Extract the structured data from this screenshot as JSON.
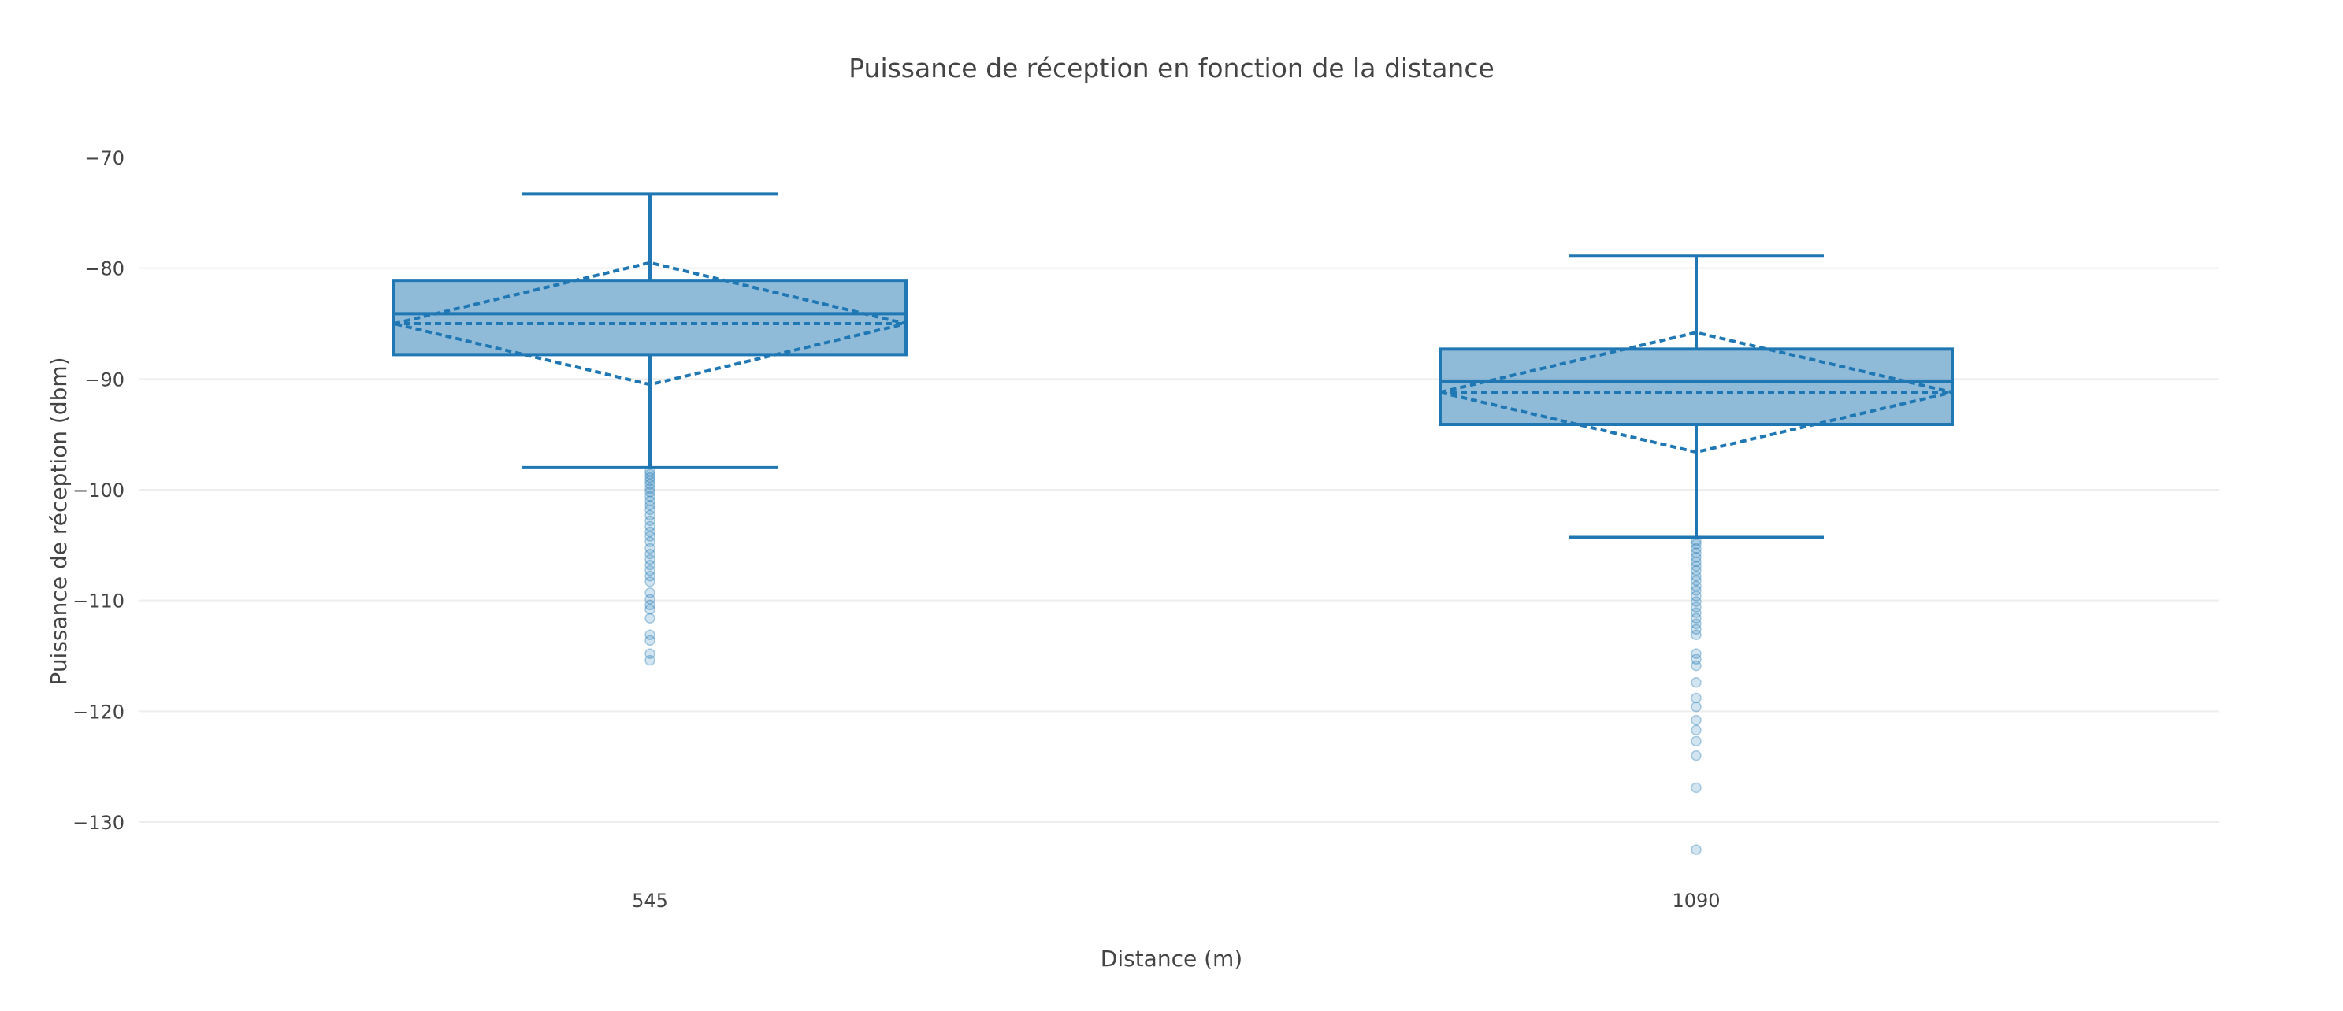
{
  "chart_data": {
    "type": "box",
    "title": "Puissance de réception  en fonction de la distance",
    "xlabel": "Distance (m)",
    "ylabel": "Puissance de réception (dbm)",
    "categories": [
      "545",
      "1090"
    ],
    "ylim": [
      -135,
      -65
    ],
    "yticks": [
      -70,
      -80,
      -90,
      -100,
      -110,
      -120,
      -130
    ],
    "ytick_labels": [
      "−70",
      "−80",
      "−90",
      "−100",
      "−110",
      "−120",
      "−130"
    ],
    "grid": true,
    "color": "#1f77b4",
    "boxes": [
      {
        "category": "545",
        "upper_whisker": -73.3,
        "q3": -81.1,
        "median": -84.1,
        "q1": -87.8,
        "lower_whisker": -98.0,
        "mean": -85.0,
        "sd": 5.5,
        "outliers": [
          -98.3,
          -98.6,
          -98.9,
          -99.2,
          -99.5,
          -99.9,
          -100.2,
          -100.6,
          -101.0,
          -101.4,
          -101.8,
          -102.3,
          -102.8,
          -103.3,
          -103.8,
          -104.2,
          -104.7,
          -105.3,
          -105.8,
          -106.3,
          -106.8,
          -107.3,
          -107.8,
          -108.3,
          -109.3,
          -109.9,
          -110.4,
          -110.8,
          -111.6,
          -113.1,
          -113.6,
          -114.8,
          -115.4
        ]
      },
      {
        "category": "1090",
        "upper_whisker": -78.9,
        "q3": -87.3,
        "median": -90.2,
        "q1": -94.1,
        "lower_whisker": -104.3,
        "mean": -91.2,
        "sd": 5.4,
        "outliers": [
          -104.6,
          -104.9,
          -105.3,
          -105.7,
          -106.1,
          -106.5,
          -106.9,
          -107.3,
          -107.8,
          -108.2,
          -108.7,
          -109.1,
          -109.6,
          -110.1,
          -110.6,
          -111.1,
          -111.6,
          -112.1,
          -112.6,
          -113.1,
          -114.8,
          -115.3,
          -115.9,
          -117.4,
          -118.8,
          -119.6,
          -120.8,
          -121.7,
          -122.7,
          -124.0,
          -126.9,
          -132.5
        ]
      }
    ]
  }
}
